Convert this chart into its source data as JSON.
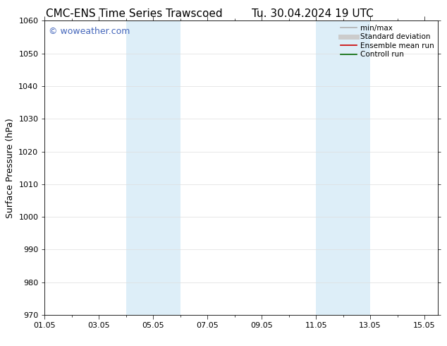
{
  "title_left": "CMC-ENS Time Series Trawscoed",
  "title_right": "Tu. 30.04.2024 19 UTC",
  "ylabel": "Surface Pressure (hPa)",
  "ylim": [
    970,
    1060
  ],
  "yticks": [
    970,
    980,
    990,
    1000,
    1010,
    1020,
    1030,
    1040,
    1050,
    1060
  ],
  "xlim": [
    0,
    14.5
  ],
  "xtick_labels": [
    "01.05",
    "03.05",
    "05.05",
    "07.05",
    "09.05",
    "11.05",
    "13.05",
    "15.05"
  ],
  "xtick_positions": [
    0,
    2,
    4,
    6,
    8,
    10,
    12,
    14
  ],
  "shaded_regions": [
    {
      "x_start": 3.0,
      "x_end": 5.0,
      "color": "#ddeef8"
    },
    {
      "x_start": 10.0,
      "x_end": 12.0,
      "color": "#ddeef8"
    }
  ],
  "watermark": "© woweather.com",
  "watermark_color": "#4466bb",
  "background_color": "#ffffff",
  "legend_items": [
    {
      "label": "min/max",
      "color": "#b0b0b0",
      "lw": 1.2,
      "ls": "-"
    },
    {
      "label": "Standard deviation",
      "color": "#cccccc",
      "lw": 5,
      "ls": "-"
    },
    {
      "label": "Ensemble mean run",
      "color": "#cc0000",
      "lw": 1.2,
      "ls": "-"
    },
    {
      "label": "Controll run",
      "color": "#006600",
      "lw": 1.2,
      "ls": "-"
    }
  ],
  "grid_color": "#dddddd",
  "title_fontsize": 11,
  "tick_fontsize": 8,
  "label_fontsize": 9,
  "legend_fontsize": 7.5,
  "watermark_fontsize": 9
}
